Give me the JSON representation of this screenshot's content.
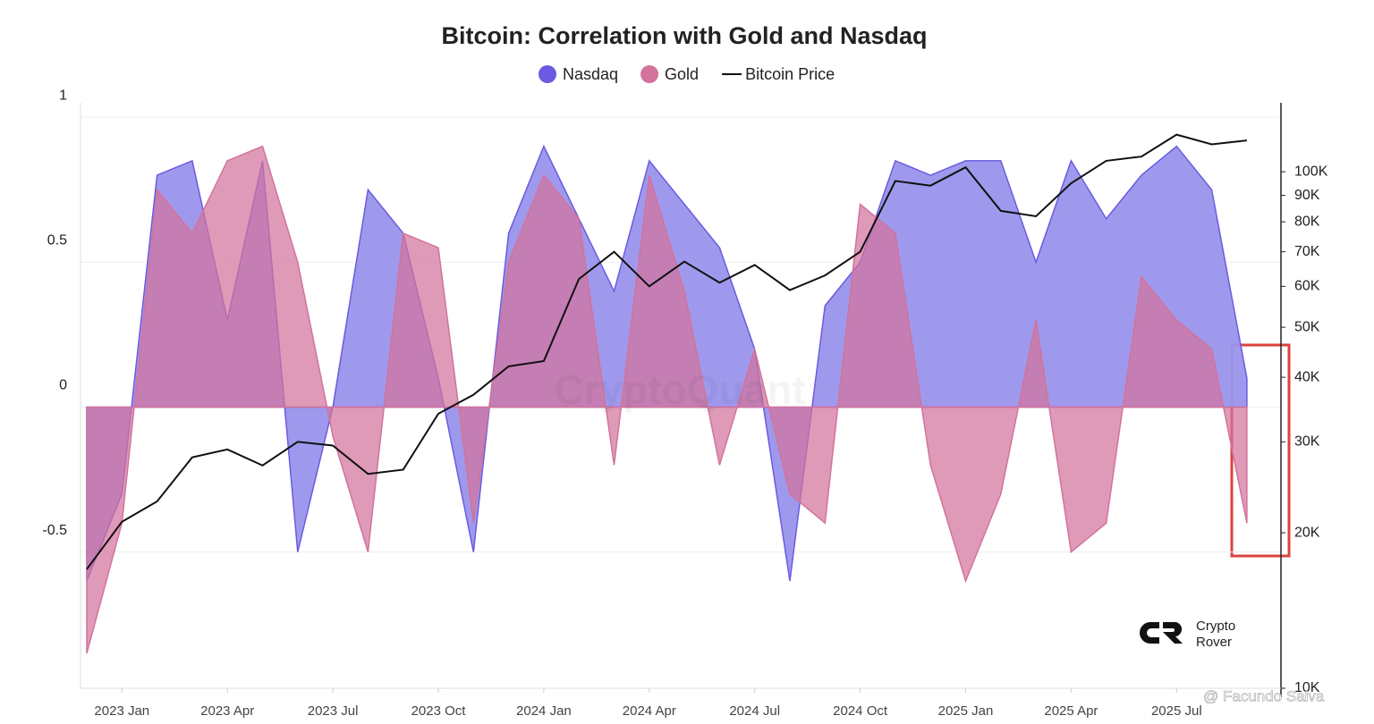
{
  "chart_data": {
    "type": "area",
    "title": "Bitcoin: Correlation with Gold and Nasdaq",
    "categories": [
      null,
      "2023 Jan",
      null,
      null,
      "2023 Apr",
      null,
      null,
      "2023 Jul",
      null,
      null,
      "2023 Oct",
      null,
      null,
      "2024 Jan",
      null,
      null,
      "2024 Apr",
      null,
      null,
      "2024 Jul",
      null,
      null,
      "2024 Oct",
      null,
      null,
      "2025 Jan",
      null,
      null,
      "2025 Apr",
      null,
      null,
      "2025 Jul",
      null,
      null
    ],
    "series": [
      {
        "name": "Nasdaq",
        "color": "#6a5be0",
        "fill": "#9a94ec",
        "values": [
          -0.6,
          -0.3,
          0.8,
          0.85,
          0.3,
          0.85,
          -0.5,
          0.0,
          0.75,
          0.6,
          0.1,
          -0.5,
          0.6,
          0.9,
          0.65,
          0.4,
          0.85,
          0.7,
          0.55,
          0.2,
          -0.6,
          0.35,
          0.5,
          0.85,
          0.8,
          0.85,
          0.85,
          0.5,
          0.85,
          0.65,
          0.8,
          0.9,
          0.75,
          0.1
        ]
      },
      {
        "name": "Gold",
        "color": "#d2739c",
        "fill": "#d2739c",
        "values": [
          -0.85,
          -0.4,
          0.75,
          0.6,
          0.85,
          0.9,
          0.5,
          -0.1,
          -0.5,
          0.6,
          0.55,
          -0.4,
          0.5,
          0.8,
          0.65,
          -0.2,
          0.8,
          0.4,
          -0.2,
          0.2,
          -0.3,
          -0.4,
          0.7,
          0.6,
          -0.2,
          -0.6,
          -0.3,
          0.3,
          -0.5,
          -0.4,
          0.45,
          0.3,
          0.2,
          -0.4
        ]
      },
      {
        "name": "Bitcoin Price",
        "color": "#111111",
        "axis": "y2",
        "values": [
          17000,
          21000,
          23000,
          28000,
          29000,
          27000,
          30000,
          29500,
          26000,
          26500,
          34000,
          37000,
          42000,
          43000,
          62000,
          70000,
          60000,
          67000,
          61000,
          66000,
          59000,
          63000,
          70000,
          96000,
          94000,
          102000,
          84000,
          82000,
          95000,
          105000,
          107000,
          118000,
          113000,
          115000
        ]
      }
    ],
    "ylim": [
      -0.97,
      1.05
    ],
    "yticks": [
      {
        "value": -0.5,
        "label": "-0.5"
      },
      0,
      0.5,
      1
    ],
    "y2lim": [
      10000,
      136000
    ],
    "y2_log": true,
    "y2ticks": [
      {
        "value": 10000,
        "label": "10K"
      },
      {
        "value": 20000,
        "label": "20K"
      },
      {
        "value": 30000,
        "label": "30K"
      },
      {
        "value": 40000,
        "label": "40K"
      },
      {
        "value": 50000,
        "label": "50K"
      },
      {
        "value": 60000,
        "label": "60K"
      },
      {
        "value": 70000,
        "label": "70K"
      },
      {
        "value": 80000,
        "label": "80K"
      },
      {
        "value": 90000,
        "label": "90K"
      },
      {
        "value": 100000,
        "label": "100K"
      }
    ],
    "grid": true,
    "legend": "top",
    "watermarks": [
      "CryptoQuant",
      "Crypto",
      "Rover",
      "@ Facundo Saiva"
    ]
  }
}
